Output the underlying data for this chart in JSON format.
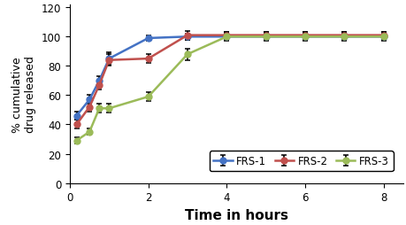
{
  "series": [
    {
      "label": "FRS-1",
      "x": [
        0.17,
        0.5,
        0.75,
        1.0,
        2.0,
        3.0,
        4.0,
        5.0,
        6.0,
        7.0,
        8.0
      ],
      "y": [
        46,
        57,
        70,
        85,
        99,
        100,
        100,
        100,
        100,
        100,
        100
      ],
      "yerr": [
        3,
        3,
        3,
        4,
        2,
        2,
        2,
        2,
        2,
        2,
        2
      ],
      "color": "#4472c4"
    },
    {
      "label": "FRS-2",
      "x": [
        0.17,
        0.5,
        0.75,
        1.0,
        2.0,
        3.0,
        4.0,
        5.0,
        6.0,
        7.0,
        8.0
      ],
      "y": [
        40,
        52,
        67,
        84,
        85,
        101,
        101,
        101,
        101,
        101,
        101
      ],
      "yerr": [
        3,
        3,
        3,
        4,
        3,
        3,
        2,
        2,
        2,
        2,
        2
      ],
      "color": "#c0504d"
    },
    {
      "label": "FRS-3",
      "x": [
        0.17,
        0.5,
        0.75,
        1.0,
        2.0,
        3.0,
        4.0,
        5.0,
        6.0,
        7.0,
        8.0
      ],
      "y": [
        29,
        35,
        51,
        51,
        59,
        88,
        100,
        100,
        100,
        100,
        100
      ],
      "yerr": [
        2,
        2,
        3,
        3,
        3,
        4,
        3,
        3,
        3,
        3,
        3
      ],
      "color": "#9bbb59"
    }
  ],
  "xlabel": "Time in hours",
  "ylabel": "% cumulative\ndrug released",
  "xlim": [
    0,
    8.5
  ],
  "ylim": [
    0,
    122
  ],
  "yticks": [
    0,
    20,
    40,
    60,
    80,
    100,
    120
  ],
  "xticks": [
    0,
    2,
    4,
    6,
    8
  ],
  "xlabel_fontsize": 11,
  "ylabel_fontsize": 9,
  "tick_fontsize": 8.5,
  "legend_fontsize": 8.5,
  "markersize": 5,
  "linewidth": 1.8,
  "elinewidth": 1.2,
  "capsize": 2.5
}
